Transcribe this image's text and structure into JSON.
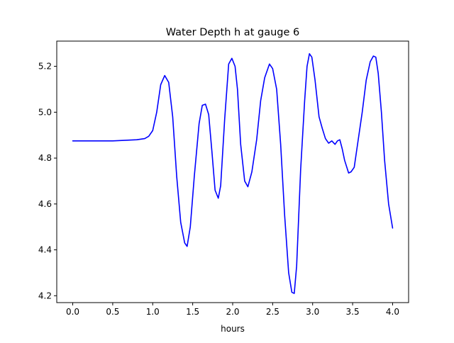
{
  "chart_data": {
    "type": "line",
    "title": "Water Depth h at gauge 6",
    "xlabel": "hours",
    "ylabel": "",
    "xlim": [
      -0.2,
      4.2
    ],
    "ylim": [
      4.17,
      5.31
    ],
    "xticks": [
      0.0,
      0.5,
      1.0,
      1.5,
      2.0,
      2.5,
      3.0,
      3.5,
      4.0
    ],
    "xtick_labels": [
      "0.0",
      "0.5",
      "1.0",
      "1.5",
      "2.0",
      "2.5",
      "3.0",
      "3.5",
      "4.0"
    ],
    "yticks": [
      4.2,
      4.4,
      4.6,
      4.8,
      5.0,
      5.2
    ],
    "ytick_labels": [
      "4.2",
      "4.4",
      "4.6",
      "4.8",
      "5.0",
      "5.2"
    ],
    "grid": false,
    "legend": "none",
    "series": [
      {
        "color": "#0000ff",
        "x": [
          0.0,
          0.5,
          0.8,
          0.9,
          0.95,
          1.0,
          1.05,
          1.1,
          1.15,
          1.2,
          1.25,
          1.3,
          1.35,
          1.4,
          1.43,
          1.47,
          1.52,
          1.58,
          1.62,
          1.66,
          1.7,
          1.74,
          1.78,
          1.82,
          1.85,
          1.9,
          1.95,
          1.99,
          2.03,
          2.06,
          2.1,
          2.15,
          2.19,
          2.24,
          2.3,
          2.35,
          2.4,
          2.46,
          2.5,
          2.55,
          2.6,
          2.65,
          2.7,
          2.74,
          2.77,
          2.8,
          2.85,
          2.9,
          2.93,
          2.96,
          2.99,
          3.03,
          3.08,
          3.12,
          3.16,
          3.2,
          3.24,
          3.28,
          3.31,
          3.34,
          3.37,
          3.4,
          3.45,
          3.48,
          3.52,
          3.57,
          3.62,
          3.67,
          3.72,
          3.76,
          3.79,
          3.82,
          3.86,
          3.9,
          3.95,
          4.0
        ],
        "y": [
          4.875,
          4.875,
          4.88,
          4.885,
          4.895,
          4.92,
          5.0,
          5.12,
          5.16,
          5.13,
          4.98,
          4.72,
          4.52,
          4.43,
          4.415,
          4.5,
          4.72,
          4.95,
          5.03,
          5.035,
          4.99,
          4.83,
          4.66,
          4.625,
          4.68,
          4.97,
          5.21,
          5.235,
          5.2,
          5.1,
          4.86,
          4.7,
          4.675,
          4.74,
          4.88,
          5.05,
          5.15,
          5.21,
          5.19,
          5.1,
          4.86,
          4.55,
          4.3,
          4.215,
          4.21,
          4.33,
          4.75,
          5.05,
          5.2,
          5.255,
          5.24,
          5.14,
          4.98,
          4.93,
          4.885,
          4.865,
          4.875,
          4.86,
          4.875,
          4.88,
          4.84,
          4.79,
          4.735,
          4.74,
          4.76,
          4.88,
          5.0,
          5.14,
          5.22,
          5.245,
          5.24,
          5.17,
          5.0,
          4.79,
          4.6,
          4.495
        ]
      }
    ]
  }
}
